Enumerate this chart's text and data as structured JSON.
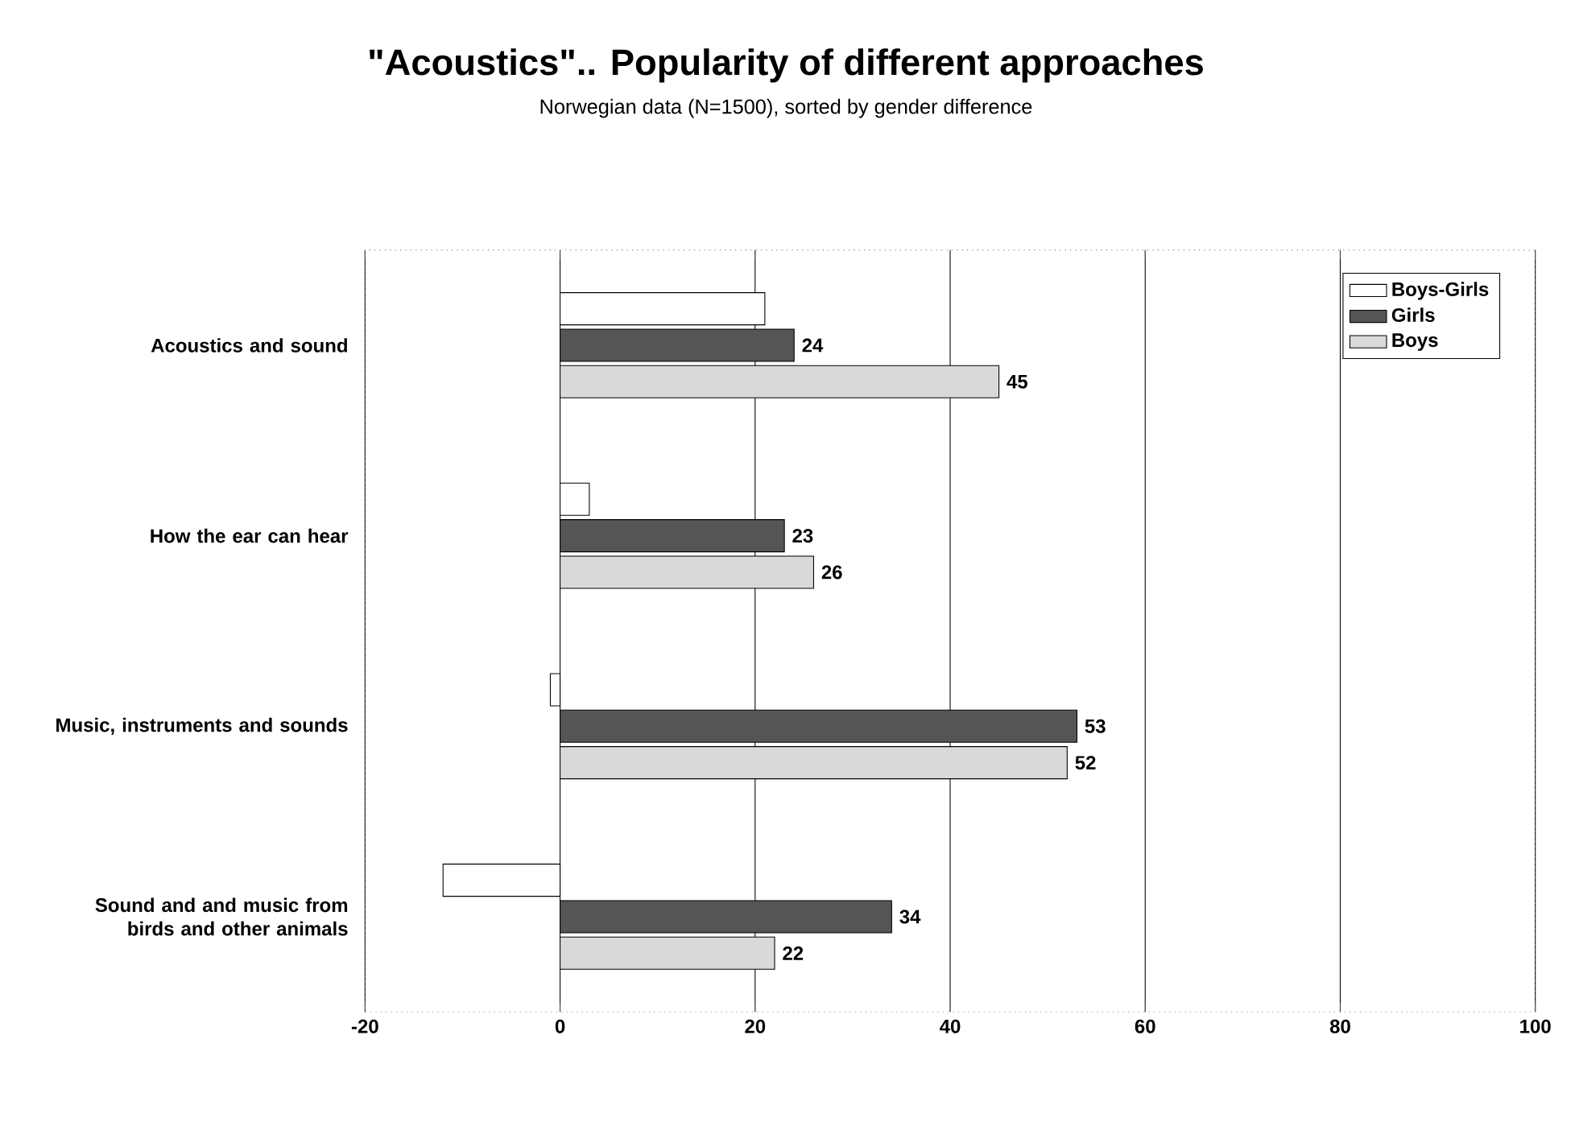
{
  "chart_data": {
    "type": "bar",
    "orientation": "horizontal",
    "title": "\"Acoustics\".. Popularity of different approaches",
    "subtitle": "Norwegian data (N=1500), sorted by gender difference",
    "categories": [
      "Acoustics and sound",
      "How the ear can hear",
      "Music, instruments and sounds",
      "Sound and and music from birds and other animals"
    ],
    "series": [
      {
        "name": "Boys-Girls",
        "color": "#ffffff",
        "values": [
          21,
          3,
          -1,
          -12
        ]
      },
      {
        "name": "Girls",
        "color": "#555555",
        "values": [
          24,
          23,
          53,
          34
        ],
        "value_labels": [
          "24",
          "23",
          "53",
          "34"
        ]
      },
      {
        "name": "Boys",
        "color": "#d9d9d9",
        "values": [
          45,
          26,
          52,
          22
        ],
        "value_labels": [
          "45",
          "26",
          "52",
          "22"
        ]
      }
    ],
    "xlim": [
      -20,
      100
    ],
    "xticks": [
      -20,
      0,
      20,
      40,
      60,
      80,
      100
    ],
    "grid": "x",
    "legend": "top right"
  }
}
